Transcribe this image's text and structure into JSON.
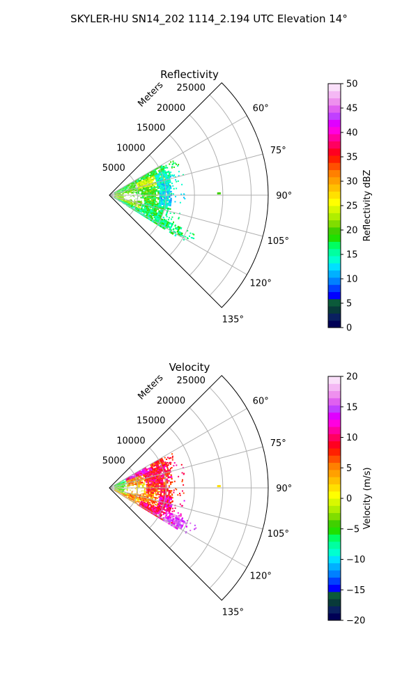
{
  "figure": {
    "title": "SKYLER-HU  SN14_202  1114_2.194 UTC Elevation 14°"
  },
  "chart_data": [
    {
      "type": "heatmap",
      "projection": "polar-sector",
      "title": "Reflectivity",
      "radial_label": "Meters",
      "radial_ticks": [
        5000,
        10000,
        15000,
        20000,
        25000
      ],
      "radial_tick_labels": [
        "5000",
        "10000",
        "15000",
        "20000",
        "25000"
      ],
      "rlim": [
        0,
        28000
      ],
      "theta_ticks": [
        60,
        75,
        90,
        105,
        120,
        135
      ],
      "theta_tick_labels": [
        "60°",
        "75°",
        "90°",
        "105°",
        "120°",
        "135°"
      ],
      "thetalim": [
        45,
        135
      ],
      "grid": true,
      "colorbar": {
        "label": "Reflectivity dBZ",
        "min": 0,
        "max": 50,
        "ticks": [
          0,
          5,
          10,
          15,
          20,
          25,
          30,
          35,
          40,
          45,
          50
        ],
        "tick_labels": [
          "0",
          "5",
          "10",
          "15",
          "20",
          "25",
          "30",
          "35",
          "40",
          "45",
          "50"
        ],
        "colors": [
          "#000055",
          "#0a2060",
          "#083a3a",
          "#0b5a3a",
          "#0000ff",
          "#0040ff",
          "#0080ff",
          "#00b0ff",
          "#00e0ff",
          "#00ffd0",
          "#00ffa0",
          "#00ff60",
          "#20e000",
          "#40d000",
          "#80dd00",
          "#b0ee00",
          "#d8f800",
          "#ffff00",
          "#ffe000",
          "#ffc000",
          "#ffa000",
          "#ff8000",
          "#ff5000",
          "#ff2000",
          "#ff0020",
          "#ff0060",
          "#ff00a0",
          "#ff00e0",
          "#e000ff",
          "#c040ff",
          "#e060f0",
          "#ee90ee",
          "#f4b8f4",
          "#fae0fa"
        ]
      },
      "echo_regions": [
        {
          "az": [
            60,
            66
          ],
          "r": [
            900,
            11200
          ],
          "value": 18
        },
        {
          "az": [
            66,
            78
          ],
          "r": [
            900,
            5200
          ],
          "value": 19
        },
        {
          "az": [
            66,
            78
          ],
          "r": [
            5200,
            8600
          ],
          "value": 24
        },
        {
          "az": [
            66,
            78
          ],
          "r": [
            8600,
            11400
          ],
          "value": 14
        },
        {
          "az": [
            78,
            102
          ],
          "r": [
            900,
            4600
          ],
          "value": 21
        },
        {
          "az": [
            78,
            102
          ],
          "r": [
            4600,
            8800
          ],
          "value": 19
        },
        {
          "az": [
            78,
            102
          ],
          "r": [
            8800,
            11000
          ],
          "value": 13
        },
        {
          "az": [
            102,
            114
          ],
          "r": [
            900,
            6000
          ],
          "value": 22
        },
        {
          "az": [
            102,
            114
          ],
          "r": [
            6000,
            10600
          ],
          "value": 17
        },
        {
          "az": [
            114,
            121
          ],
          "r": [
            900,
            14500
          ],
          "value": 16
        }
      ],
      "far_echo": {
        "az": 88.5,
        "r": [
          19000,
          19600
        ],
        "value": 20
      }
    },
    {
      "type": "heatmap",
      "projection": "polar-sector",
      "title": "Velocity",
      "radial_label": "Meters",
      "radial_ticks": [
        5000,
        10000,
        15000,
        20000,
        25000
      ],
      "radial_tick_labels": [
        "5000",
        "10000",
        "15000",
        "20000",
        "25000"
      ],
      "rlim": [
        0,
        28000
      ],
      "theta_ticks": [
        60,
        75,
        90,
        105,
        120,
        135
      ],
      "theta_tick_labels": [
        "60°",
        "75°",
        "90°",
        "105°",
        "120°",
        "135°"
      ],
      "thetalim": [
        45,
        135
      ],
      "grid": true,
      "colorbar": {
        "label": "Velocity (m/s)",
        "min": -20,
        "max": 20,
        "ticks": [
          -20,
          -15,
          -10,
          -5,
          0,
          5,
          10,
          15,
          20
        ],
        "tick_labels": [
          "−20",
          "−15",
          "−10",
          "−5",
          "0",
          "5",
          "10",
          "15",
          "20"
        ],
        "colors": [
          "#000055",
          "#0a2060",
          "#083a3a",
          "#0b5a3a",
          "#0000ff",
          "#0040ff",
          "#0080ff",
          "#00b0ff",
          "#00e0ff",
          "#00ffd0",
          "#00ffa0",
          "#00ff60",
          "#20e000",
          "#40d000",
          "#80dd00",
          "#b0ee00",
          "#d8f800",
          "#ffff00",
          "#ffe000",
          "#ffc000",
          "#ffa000",
          "#ff8000",
          "#ff5000",
          "#ff2000",
          "#ff0020",
          "#ff0060",
          "#ff00a0",
          "#ff00e0",
          "#e000ff",
          "#c040ff",
          "#e060f0",
          "#ee90ee",
          "#f4b8f4",
          "#fae0fa"
        ]
      },
      "echo_regions": [
        {
          "az": [
            60,
            68
          ],
          "r": [
            900,
            3200
          ],
          "value": -6
        },
        {
          "az": [
            60,
            68
          ],
          "r": [
            3200,
            8200
          ],
          "value": 12
        },
        {
          "az": [
            60,
            68
          ],
          "r": [
            8200,
            11000
          ],
          "value": 8
        },
        {
          "az": [
            68,
            84
          ],
          "r": [
            900,
            3200
          ],
          "value": -5
        },
        {
          "az": [
            68,
            84
          ],
          "r": [
            3200,
            6500
          ],
          "value": 5
        },
        {
          "az": [
            68,
            84
          ],
          "r": [
            6500,
            11200
          ],
          "value": 9
        },
        {
          "az": [
            84,
            98
          ],
          "r": [
            900,
            3000
          ],
          "value": -4
        },
        {
          "az": [
            84,
            98
          ],
          "r": [
            3000,
            6500
          ],
          "value": 1
        },
        {
          "az": [
            84,
            98
          ],
          "r": [
            6500,
            10800
          ],
          "value": 8
        },
        {
          "az": [
            98,
            112
          ],
          "r": [
            900,
            3200
          ],
          "value": -3
        },
        {
          "az": [
            98,
            112
          ],
          "r": [
            3200,
            9000
          ],
          "value": 5
        },
        {
          "az": [
            98,
            112
          ],
          "r": [
            9000,
            11500
          ],
          "value": 11
        },
        {
          "az": [
            112,
            121
          ],
          "r": [
            900,
            6000
          ],
          "value": 4
        },
        {
          "az": [
            112,
            121
          ],
          "r": [
            6000,
            11000
          ],
          "value": 10
        },
        {
          "az": [
            112,
            121
          ],
          "r": [
            11000,
            14500
          ],
          "value": 15
        }
      ],
      "far_echo": {
        "az": 88.5,
        "r": [
          19000,
          19600
        ],
        "value": 2
      }
    }
  ]
}
